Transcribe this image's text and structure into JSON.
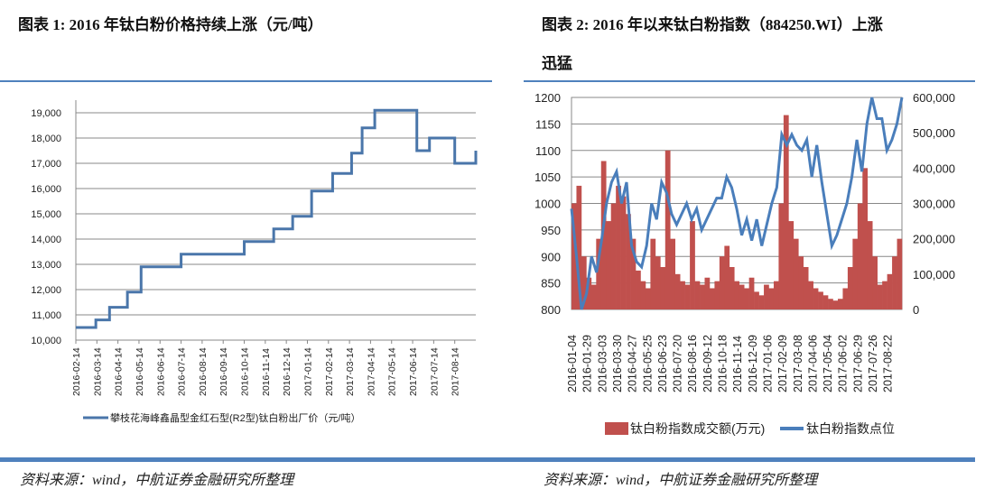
{
  "titles": {
    "left": "图表 1:  2016 年钛白粉价格持续上涨（元/吨）",
    "right_line1": "图表 2:  2016 年以来钛白粉指数（884250.WI）上涨",
    "right_line2": "迅猛"
  },
  "sources": {
    "left": "资料来源：wind，中航证券金融研究所整理",
    "right": "资料来源：wind，中航证券金融研究所整理"
  },
  "chart_data": [
    {
      "type": "line",
      "step": true,
      "title": "",
      "ylim": [
        10000,
        19000
      ],
      "yticks": [
        "10,000",
        "11,000",
        "12,000",
        "13,000",
        "14,000",
        "15,000",
        "16,000",
        "17,000",
        "18,000",
        "19,000"
      ],
      "x_tick_labels": [
        "2016-02-14",
        "2016-03-14",
        "2016-04-14",
        "2016-05-14",
        "2016-06-14",
        "2016-07-14",
        "2016-08-14",
        "2016-09-14",
        "2016-10-14",
        "2016-11-14",
        "2016-12-14",
        "2017-01-14",
        "2017-02-14",
        "2017-03-14",
        "2017-04-14",
        "2017-05-14",
        "2017-06-14",
        "2017-07-14",
        "2017-08-14"
      ],
      "xlim_months": [
        0,
        19
      ],
      "series": [
        {
          "name": "攀枝花海峰鑫晶型金红石型(R2型)钛白粉出厂价（元/吨）",
          "color": "#4a76aa",
          "x_months": [
            0,
            0.95,
            1.6,
            2.45,
            3.1,
            5.0,
            8.0,
            9.4,
            10.3,
            11.2,
            12.2,
            13.1,
            13.6,
            14.2,
            15.2,
            16.2,
            16.8,
            18.0,
            19.0
          ],
          "values": [
            10500,
            10800,
            11300,
            11900,
            12900,
            13400,
            13900,
            14400,
            14900,
            15900,
            16600,
            17400,
            18400,
            19100,
            19100,
            17500,
            18000,
            17000,
            17500
          ]
        }
      ]
    },
    {
      "type": "bar+line",
      "title": "",
      "ylim_left": [
        800,
        1200
      ],
      "yticks_left": [
        "800",
        "850",
        "900",
        "950",
        "1000",
        "1050",
        "1100",
        "1150",
        "1200"
      ],
      "ylim_right": [
        0,
        600000
      ],
      "yticks_right": [
        "0",
        "100,000",
        "200,000",
        "300,000",
        "400,000",
        "500,000",
        "600,000"
      ],
      "x_tick_labels": [
        "2016-01-04",
        "2016-01-29",
        "2016-03-03",
        "2016-03-30",
        "2016-04-27",
        "2016-05-25",
        "2016-06-23",
        "2016-07-20",
        "2016-08-16",
        "2016-09-12",
        "2016-10-18",
        "2016-11-14",
        "2016-12-09",
        "2017-01-06",
        "2017-02-09",
        "2017-03-08",
        "2017-04-06",
        "2017-05-04",
        "2017-06-02",
        "2017-06-29",
        "2017-07-26",
        "2017-08-22"
      ],
      "series": [
        {
          "name": "钛白粉指数成交额(万元)",
          "type": "bar",
          "axis": "right",
          "color": "#c0504d",
          "values": [
            300000,
            350000,
            150000,
            90000,
            70000,
            200000,
            420000,
            250000,
            300000,
            350000,
            320000,
            270000,
            200000,
            110000,
            80000,
            60000,
            200000,
            150000,
            120000,
            450000,
            200000,
            100000,
            80000,
            70000,
            250000,
            80000,
            70000,
            90000,
            60000,
            80000,
            150000,
            180000,
            120000,
            80000,
            70000,
            60000,
            90000,
            50000,
            40000,
            70000,
            60000,
            80000,
            300000,
            550000,
            250000,
            200000,
            150000,
            120000,
            80000,
            60000,
            50000,
            40000,
            30000,
            25000,
            30000,
            60000,
            120000,
            200000,
            300000,
            400000,
            250000,
            150000,
            70000,
            80000,
            100000,
            150000,
            200000
          ]
        },
        {
          "name": "钛白粉指数点位",
          "type": "line",
          "axis": "left",
          "color": "#4a7ebb",
          "values": [
            990,
            900,
            800,
            830,
            900,
            870,
            930,
            1000,
            1040,
            1060,
            1000,
            1040,
            920,
            890,
            880,
            920,
            1000,
            970,
            1040,
            1020,
            980,
            960,
            980,
            1000,
            970,
            990,
            950,
            970,
            990,
            1010,
            1010,
            1050,
            1030,
            990,
            940,
            970,
            930,
            970,
            920,
            960,
            1000,
            1030,
            1130,
            1110,
            1130,
            1110,
            1100,
            1120,
            1050,
            1110,
            1040,
            980,
            920,
            940,
            970,
            1000,
            1050,
            1120,
            1060,
            1150,
            1200,
            1160,
            1160,
            1100,
            1120,
            1150,
            1200
          ]
        }
      ],
      "legend": "bottom"
    }
  ]
}
